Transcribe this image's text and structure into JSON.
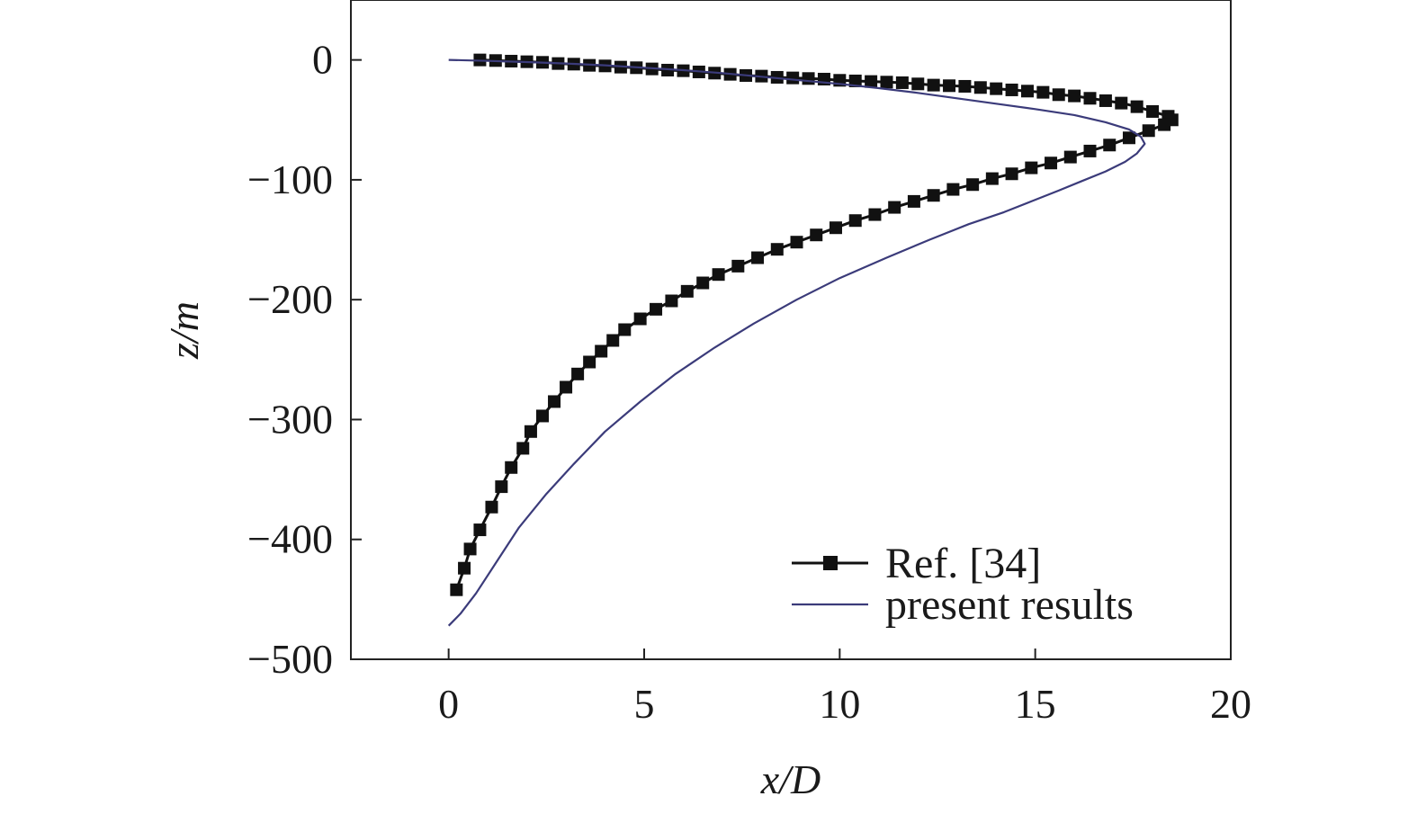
{
  "chart_data": {
    "type": "line",
    "title": "",
    "xlabel": "x/D",
    "ylabel": "z/m",
    "xlim": [
      -2.5,
      20
    ],
    "ylim": [
      -500,
      50
    ],
    "x_ticks": [
      0,
      5,
      10,
      15,
      20
    ],
    "x_tick_labels": [
      "0",
      "5",
      "10",
      "15",
      "20"
    ],
    "y_ticks": [
      0,
      -100,
      -200,
      -300,
      -400,
      -500
    ],
    "y_tick_labels": [
      "0",
      "−100",
      "−200",
      "−300",
      "−400",
      "−500"
    ],
    "grid": false,
    "legend_position": "bottom-right",
    "series": [
      {
        "name": "Ref. [34]",
        "color": "#111111",
        "marker": "square",
        "points": [
          [
            0.8,
            0
          ],
          [
            1.2,
            -0.5
          ],
          [
            1.6,
            -1
          ],
          [
            2.0,
            -1.5
          ],
          [
            2.4,
            -2
          ],
          [
            2.8,
            -3
          ],
          [
            3.2,
            -3.5
          ],
          [
            3.6,
            -4.5
          ],
          [
            4.0,
            -5
          ],
          [
            4.4,
            -6
          ],
          [
            4.8,
            -6.5
          ],
          [
            5.2,
            -7.5
          ],
          [
            5.6,
            -8.5
          ],
          [
            6.0,
            -9
          ],
          [
            6.4,
            -10
          ],
          [
            6.8,
            -11
          ],
          [
            7.2,
            -12
          ],
          [
            7.6,
            -13
          ],
          [
            8.0,
            -13.5
          ],
          [
            8.4,
            -14.5
          ],
          [
            8.8,
            -15
          ],
          [
            9.2,
            -15.5
          ],
          [
            9.6,
            -16
          ],
          [
            10.0,
            -17
          ],
          [
            10.4,
            -17.5
          ],
          [
            10.8,
            -18
          ],
          [
            11.2,
            -18.5
          ],
          [
            11.6,
            -19
          ],
          [
            12.0,
            -20
          ],
          [
            12.4,
            -21
          ],
          [
            12.8,
            -21.5
          ],
          [
            13.2,
            -22
          ],
          [
            13.6,
            -23
          ],
          [
            14.0,
            -24
          ],
          [
            14.4,
            -25
          ],
          [
            14.8,
            -26
          ],
          [
            15.2,
            -27
          ],
          [
            15.6,
            -29
          ],
          [
            16.0,
            -30
          ],
          [
            16.4,
            -32
          ],
          [
            16.8,
            -34
          ],
          [
            17.2,
            -36
          ],
          [
            17.6,
            -39
          ],
          [
            18.0,
            -43
          ],
          [
            18.4,
            -47
          ],
          [
            18.5,
            -50
          ],
          [
            18.3,
            -54
          ],
          [
            17.9,
            -59
          ],
          [
            17.4,
            -65
          ],
          [
            16.9,
            -71
          ],
          [
            16.4,
            -76
          ],
          [
            15.9,
            -81
          ],
          [
            15.4,
            -86
          ],
          [
            14.9,
            -90
          ],
          [
            14.4,
            -95
          ],
          [
            13.9,
            -99
          ],
          [
            13.4,
            -104
          ],
          [
            12.9,
            -108
          ],
          [
            12.4,
            -113
          ],
          [
            11.9,
            -118
          ],
          [
            11.4,
            -123
          ],
          [
            10.9,
            -129
          ],
          [
            10.4,
            -134
          ],
          [
            9.9,
            -140
          ],
          [
            9.4,
            -146
          ],
          [
            8.9,
            -152
          ],
          [
            8.4,
            -158
          ],
          [
            7.9,
            -165
          ],
          [
            7.4,
            -172
          ],
          [
            6.9,
            -179
          ],
          [
            6.5,
            -186
          ],
          [
            6.1,
            -193
          ],
          [
            5.7,
            -201
          ],
          [
            5.3,
            -208
          ],
          [
            4.9,
            -216
          ],
          [
            4.5,
            -225
          ],
          [
            4.2,
            -234
          ],
          [
            3.9,
            -243
          ],
          [
            3.6,
            -252
          ],
          [
            3.3,
            -262
          ],
          [
            3.0,
            -273
          ],
          [
            2.7,
            -285
          ],
          [
            2.4,
            -297
          ],
          [
            2.1,
            -310
          ],
          [
            1.9,
            -324
          ],
          [
            1.6,
            -340
          ],
          [
            1.35,
            -356
          ],
          [
            1.1,
            -373
          ],
          [
            0.8,
            -392
          ],
          [
            0.55,
            -408
          ],
          [
            0.4,
            -424
          ],
          [
            0.2,
            -442
          ]
        ]
      },
      {
        "name": "present results",
        "color": "#3b3b7a",
        "marker": "none",
        "points": [
          [
            0,
            0
          ],
          [
            1,
            -0.8
          ],
          [
            2,
            -1.8
          ],
          [
            3,
            -3
          ],
          [
            4,
            -4.5
          ],
          [
            5,
            -6.5
          ],
          [
            6,
            -8.5
          ],
          [
            7,
            -11
          ],
          [
            8,
            -14
          ],
          [
            9,
            -17
          ],
          [
            10,
            -20
          ],
          [
            11,
            -23.5
          ],
          [
            12,
            -27.5
          ],
          [
            13,
            -32
          ],
          [
            14,
            -36.5
          ],
          [
            15,
            -41
          ],
          [
            16,
            -46
          ],
          [
            16.8,
            -52
          ],
          [
            17.4,
            -58
          ],
          [
            17.7,
            -64
          ],
          [
            17.8,
            -70
          ],
          [
            17.6,
            -78
          ],
          [
            17.3,
            -85
          ],
          [
            16.8,
            -93
          ],
          [
            16.2,
            -101
          ],
          [
            15.6,
            -109
          ],
          [
            14.9,
            -118
          ],
          [
            14.2,
            -127
          ],
          [
            13.3,
            -137
          ],
          [
            12.3,
            -150
          ],
          [
            11.2,
            -165
          ],
          [
            10.0,
            -182
          ],
          [
            8.9,
            -200
          ],
          [
            7.8,
            -220
          ],
          [
            6.8,
            -240
          ],
          [
            5.8,
            -262
          ],
          [
            4.9,
            -285
          ],
          [
            4.0,
            -310
          ],
          [
            3.2,
            -337
          ],
          [
            2.5,
            -362
          ],
          [
            1.8,
            -390
          ],
          [
            1.2,
            -420
          ],
          [
            0.7,
            -445
          ],
          [
            0.3,
            -462
          ],
          [
            0,
            -472
          ]
        ]
      }
    ]
  }
}
